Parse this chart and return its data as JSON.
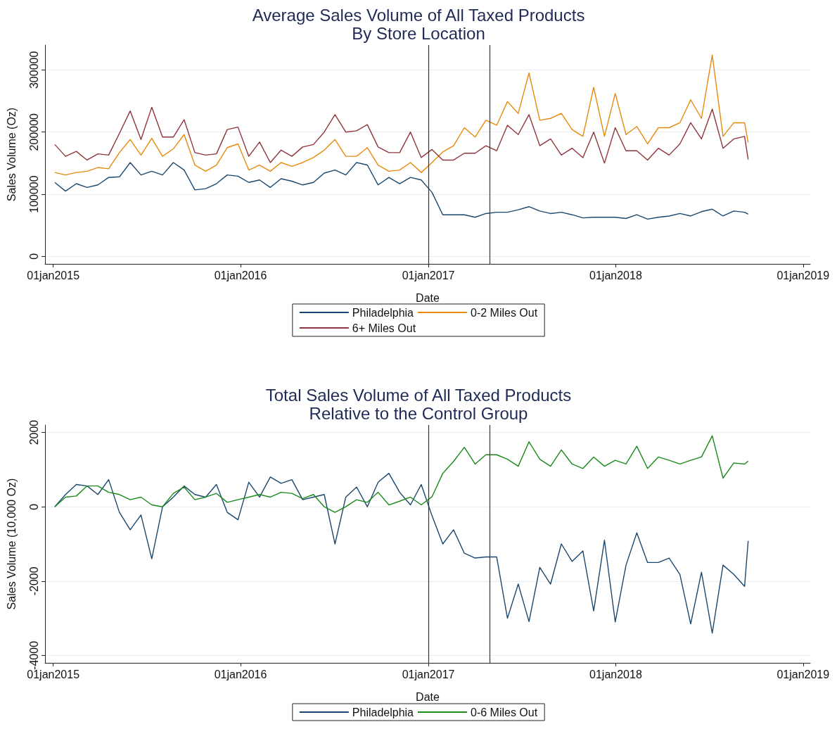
{
  "chart_data": [
    {
      "type": "line",
      "title": "Average Sales Volume of All Taxed Products",
      "subtitle": "By Store Location",
      "xlabel": "Date",
      "ylabel": "Sales Volume (Oz)",
      "x": [
        "2015-01-04",
        "2015-01-25",
        "2015-02-15",
        "2015-03-08",
        "2015-03-29",
        "2015-04-19",
        "2015-05-10",
        "2015-05-31",
        "2015-06-21",
        "2015-07-12",
        "2015-08-02",
        "2015-08-23",
        "2015-09-13",
        "2015-10-04",
        "2015-10-25",
        "2015-11-15",
        "2015-12-06",
        "2015-12-27",
        "2016-01-17",
        "2016-02-07",
        "2016-02-28",
        "2016-03-20",
        "2016-04-10",
        "2016-05-01",
        "2016-05-22",
        "2016-06-12",
        "2016-07-03",
        "2016-07-24",
        "2016-08-14",
        "2016-09-04",
        "2016-09-25",
        "2016-10-16",
        "2016-11-06",
        "2016-11-27",
        "2016-12-18",
        "2017-01-08",
        "2017-01-29",
        "2017-02-19",
        "2017-03-12",
        "2017-04-02",
        "2017-04-23",
        "2017-05-14",
        "2017-06-04",
        "2017-06-25",
        "2017-07-16",
        "2017-08-06",
        "2017-08-27",
        "2017-09-17",
        "2017-10-08",
        "2017-10-29",
        "2017-11-19",
        "2017-12-10",
        "2017-12-31",
        "2018-01-21",
        "2018-02-11",
        "2018-03-04",
        "2018-03-25",
        "2018-04-15",
        "2018-05-06",
        "2018-05-27",
        "2018-06-17",
        "2018-07-08",
        "2018-07-29",
        "2018-08-19",
        "2018-09-09",
        "2018-09-16"
      ],
      "series": [
        {
          "name": "Philadelphia",
          "color": "#1a476f",
          "values": [
            119000,
            105000,
            117000,
            111000,
            115000,
            127000,
            128000,
            151000,
            131000,
            137000,
            131000,
            151000,
            139000,
            107000,
            109000,
            117000,
            131000,
            129000,
            119000,
            123000,
            111000,
            125000,
            121000,
            115000,
            119000,
            134000,
            139000,
            131000,
            151000,
            147000,
            115000,
            127000,
            117000,
            127000,
            123000,
            103000,
            67000,
            67000,
            67000,
            63000,
            69000,
            71000,
            71000,
            75000,
            80000,
            73000,
            69000,
            71000,
            67000,
            62000,
            63000,
            63000,
            63000,
            61000,
            67000,
            60000,
            63000,
            65000,
            69000,
            65000,
            72000,
            76000,
            65000,
            73000,
            71000,
            68000
          ]
        },
        {
          "name": "0-2 Miles Out",
          "color": "#e8890c",
          "values": [
            135000,
            131000,
            135000,
            137000,
            143000,
            141000,
            167000,
            188000,
            163000,
            190000,
            161000,
            173000,
            196000,
            147000,
            137000,
            147000,
            175000,
            181000,
            139000,
            147000,
            137000,
            151000,
            145000,
            151000,
            159000,
            171000,
            188000,
            161000,
            161000,
            175000,
            147000,
            137000,
            139000,
            151000,
            135000,
            151000,
            168000,
            178000,
            207000,
            192000,
            219000,
            211000,
            249000,
            230000,
            295000,
            219000,
            222000,
            230000,
            204000,
            193000,
            272000,
            193000,
            262000,
            196000,
            209000,
            181000,
            207000,
            207000,
            215000,
            252000,
            222000,
            324000,
            193000,
            215000,
            215000,
            183000
          ]
        },
        {
          "name": "6+ Miles Out",
          "color": "#90353b",
          "values": [
            180000,
            161000,
            169000,
            155000,
            165000,
            163000,
            198000,
            234000,
            188000,
            240000,
            192000,
            192000,
            220000,
            167000,
            163000,
            165000,
            204000,
            208000,
            161000,
            184000,
            151000,
            171000,
            161000,
            176000,
            180000,
            200000,
            228000,
            200000,
            202000,
            212000,
            176000,
            167000,
            167000,
            200000,
            159000,
            172000,
            155000,
            155000,
            166000,
            166000,
            178000,
            170000,
            211000,
            196000,
            228000,
            178000,
            189000,
            163000,
            174000,
            159000,
            200000,
            150000,
            207000,
            170000,
            170000,
            155000,
            174000,
            163000,
            181000,
            215000,
            189000,
            237000,
            174000,
            189000,
            193000,
            156000
          ]
        }
      ],
      "xlim": [
        "2014-12-16",
        "2019-01-15"
      ],
      "xticks": [
        {
          "value": "2015-01-01",
          "label": "01jan2015"
        },
        {
          "value": "2016-01-01",
          "label": "01jan2016"
        },
        {
          "value": "2017-01-01",
          "label": "01jan2017"
        },
        {
          "value": "2018-01-01",
          "label": "01jan2018"
        },
        {
          "value": "2019-01-01",
          "label": "01jan2019"
        }
      ],
      "ylim": [
        -12000,
        340000
      ],
      "yticks": [
        0,
        100000,
        200000,
        300000
      ],
      "ref_lines": [
        {
          "axis": "x",
          "value": "2017-01-01",
          "color": "#333333"
        },
        {
          "axis": "x",
          "value": "2017-05-01",
          "color": "#333333"
        }
      ],
      "grid": "y",
      "legend": "bottom",
      "marker": "none"
    },
    {
      "type": "line",
      "title": "Total Sales Volume of All Taxed Products",
      "subtitle": "Relative to the Control Group",
      "xlabel": "Date",
      "ylabel": "Sales Volume (10,000 Oz)",
      "x": [
        "2015-01-04",
        "2015-01-25",
        "2015-02-15",
        "2015-03-08",
        "2015-03-29",
        "2015-04-19",
        "2015-05-10",
        "2015-05-31",
        "2015-06-21",
        "2015-07-12",
        "2015-08-02",
        "2015-08-23",
        "2015-09-13",
        "2015-10-04",
        "2015-10-25",
        "2015-11-15",
        "2015-12-06",
        "2015-12-27",
        "2016-01-17",
        "2016-02-07",
        "2016-02-28",
        "2016-03-20",
        "2016-04-10",
        "2016-05-01",
        "2016-05-22",
        "2016-06-12",
        "2016-07-03",
        "2016-07-24",
        "2016-08-14",
        "2016-09-04",
        "2016-09-25",
        "2016-10-16",
        "2016-11-06",
        "2016-11-27",
        "2016-12-18",
        "2017-01-08",
        "2017-01-29",
        "2017-02-19",
        "2017-03-12",
        "2017-04-02",
        "2017-04-23",
        "2017-05-14",
        "2017-06-04",
        "2017-06-25",
        "2017-07-16",
        "2017-08-06",
        "2017-08-27",
        "2017-09-17",
        "2017-10-08",
        "2017-10-29",
        "2017-11-19",
        "2017-12-10",
        "2017-12-31",
        "2018-01-21",
        "2018-02-11",
        "2018-03-04",
        "2018-03-25",
        "2018-04-15",
        "2018-05-06",
        "2018-05-27",
        "2018-06-17",
        "2018-07-08",
        "2018-07-29",
        "2018-08-19",
        "2018-09-09",
        "2018-09-16"
      ],
      "series": [
        {
          "name": "Philadelphia",
          "color": "#1a476f",
          "values": [
            0,
            330,
            600,
            560,
            330,
            730,
            -150,
            -620,
            -220,
            -1400,
            0,
            260,
            560,
            330,
            260,
            600,
            -150,
            -350,
            660,
            260,
            800,
            630,
            730,
            190,
            260,
            330,
            -1000,
            260,
            530,
            0,
            660,
            900,
            390,
            50,
            600,
            -240,
            -1000,
            -620,
            -1250,
            -1380,
            -1350,
            -1350,
            -3000,
            -2080,
            -3090,
            -1630,
            -2080,
            -1000,
            -1470,
            -1190,
            -2800,
            -900,
            -3100,
            -1570,
            -700,
            -1500,
            -1500,
            -1380,
            -1820,
            -3150,
            -1760,
            -3400,
            -1570,
            -1820,
            -2140,
            -920
          ]
        },
        {
          "name": "0-6 Miles Out",
          "color": "#1a8a1a",
          "values": [
            0,
            260,
            290,
            560,
            560,
            390,
            330,
            190,
            260,
            50,
            0,
            360,
            530,
            190,
            260,
            360,
            120,
            190,
            260,
            330,
            260,
            390,
            360,
            220,
            330,
            0,
            -150,
            0,
            190,
            120,
            390,
            50,
            150,
            260,
            50,
            270,
            900,
            1220,
            1600,
            1150,
            1400,
            1400,
            1280,
            1090,
            1750,
            1280,
            1090,
            1530,
            1150,
            1030,
            1340,
            1090,
            1250,
            1150,
            1630,
            1030,
            1340,
            1250,
            1150,
            1250,
            1340,
            1910,
            770,
            1180,
            1150,
            1230
          ]
        }
      ],
      "xlim": [
        "2014-12-16",
        "2019-01-15"
      ],
      "xticks": [
        {
          "value": "2015-01-01",
          "label": "01jan2015"
        },
        {
          "value": "2016-01-01",
          "label": "01jan2016"
        },
        {
          "value": "2017-01-01",
          "label": "01jan2017"
        },
        {
          "value": "2018-01-01",
          "label": "01jan2018"
        },
        {
          "value": "2019-01-01",
          "label": "01jan2019"
        }
      ],
      "ylim": [
        -4200,
        2200
      ],
      "yticks": [
        -4000,
        -2000,
        0,
        2000
      ],
      "ref_lines": [
        {
          "axis": "x",
          "value": "2017-01-01",
          "color": "#333333"
        },
        {
          "axis": "x",
          "value": "2017-05-01",
          "color": "#333333"
        }
      ],
      "grid": "y",
      "legend": "bottom",
      "marker": "none"
    }
  ]
}
